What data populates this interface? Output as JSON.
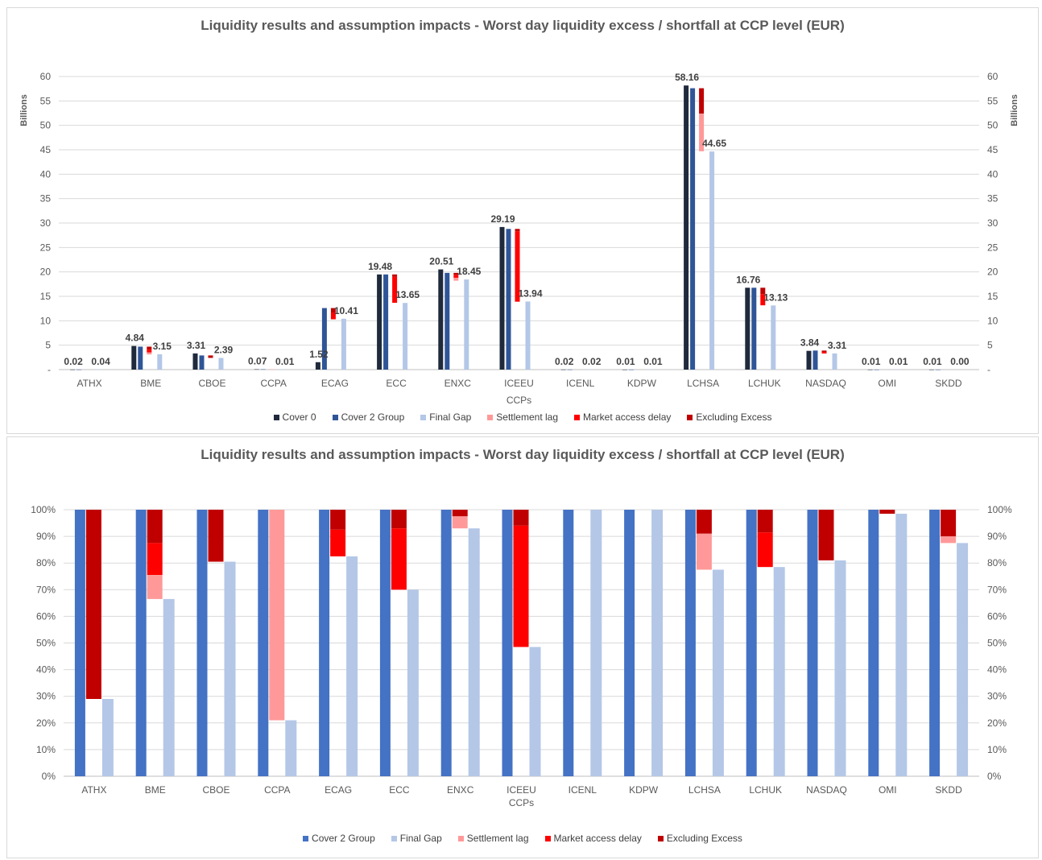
{
  "chart_data": [
    {
      "type": "bar",
      "title": "Liquidity results and assumption impacts - Worst day liquidity excess / shortfall at CCP level (EUR)",
      "xlabel": "CCPs",
      "ylabel": "Billions",
      "ylabel_right": "Billions",
      "ylim": [
        0,
        60
      ],
      "ytick_labels": [
        "-",
        "5",
        "10",
        "15",
        "20",
        "25",
        "30",
        "35",
        "40",
        "45",
        "50",
        "55",
        "60"
      ],
      "grid": true,
      "legend_position": "bottom",
      "categories": [
        "ATHX",
        "BME",
        "CBOE",
        "CCPA",
        "ECAG",
        "ECC",
        "ENXC",
        "ICEEU",
        "ICENL",
        "KDPW",
        "LCHSA",
        "LCHUK",
        "NASDAQ",
        "OMI",
        "SKDD"
      ],
      "series": [
        {
          "name": "Cover 0",
          "color": "#1f2a3c",
          "values": [
            0.02,
            4.84,
            3.31,
            0.07,
            1.52,
            19.48,
            20.51,
            29.19,
            0.02,
            0.01,
            58.16,
            16.76,
            3.84,
            0.01,
            0.01
          ]
        },
        {
          "name": "Cover 2 Group",
          "color": "#2f5597",
          "values": [
            0.02,
            4.7,
            2.9,
            0.07,
            12.6,
            19.48,
            19.8,
            28.8,
            0.02,
            0.01,
            57.6,
            16.76,
            3.9,
            0.01,
            0.01
          ]
        },
        {
          "name": "Final Gap",
          "color": "#b4c7e7",
          "values": [
            0.04,
            3.15,
            2.39,
            0.01,
            10.41,
            13.65,
            18.45,
            13.94,
            0.02,
            0.01,
            44.65,
            13.13,
            3.31,
            0.01,
            0.0
          ]
        },
        {
          "name": "Settlement lag",
          "color": "#ff9999",
          "values": [
            0,
            0.4,
            0,
            0.06,
            0,
            0,
            0.6,
            0,
            0,
            0,
            7.7,
            0,
            0,
            0,
            0
          ]
        },
        {
          "name": "Market access delay",
          "color": "#ff0000",
          "values": [
            0,
            0.6,
            0,
            0,
            1.4,
            5.3,
            0.6,
            14.4,
            0,
            0,
            0,
            2.3,
            0.3,
            0,
            0
          ]
        },
        {
          "name": "Excluding Excess",
          "color": "#c00000",
          "values": [
            0,
            0.6,
            0.5,
            0,
            0.9,
            0.5,
            0.4,
            0.5,
            0,
            0,
            5.2,
            1.3,
            0.3,
            0,
            0
          ]
        }
      ],
      "data_labels": {
        "Cover 0": [
          "0.02",
          "4.84",
          "3.31",
          "0.07",
          "1.52",
          "19.48",
          "20.51",
          "29.19",
          "0.02",
          "0.01",
          "58.16",
          "16.76",
          "3.84",
          "0.01",
          "0.01"
        ],
        "Final Gap": [
          "0.04",
          "3.15",
          "2.39",
          "0.01",
          "10.41",
          "13.65",
          "18.45",
          "13.94",
          "0.02",
          "0.01",
          "44.65",
          "13.13",
          "3.31",
          "0.01",
          "0.00"
        ]
      }
    },
    {
      "type": "bar",
      "title": "Liquidity results and assumption impacts - Worst day liquidity excess / shortfall at CCP level (EUR)",
      "xlabel": "CCPs",
      "ylabel": "",
      "ylim": [
        0,
        100
      ],
      "ytick_labels": [
        "0%",
        "10%",
        "20%",
        "30%",
        "40%",
        "50%",
        "60%",
        "70%",
        "80%",
        "90%",
        "100%"
      ],
      "grid": true,
      "legend_position": "bottom",
      "unit": "%",
      "categories": [
        "ATHX",
        "BME",
        "CBOE",
        "CCPA",
        "ECAG",
        "ECC",
        "ENXC",
        "ICEEU",
        "ICENL",
        "KDPW",
        "LCHSA",
        "LCHUK",
        "NASDAQ",
        "OMI",
        "SKDD"
      ],
      "series": [
        {
          "name": "Cover 2 Group",
          "color": "#4472c4",
          "values": [
            100,
            100,
            100,
            100,
            100,
            100,
            100,
            100,
            100,
            100,
            100,
            100,
            100,
            100,
            100
          ]
        },
        {
          "name": "Final Gap",
          "color": "#b4c7e7",
          "values": [
            29,
            66.5,
            80.5,
            21,
            82.5,
            70,
            93,
            48.5,
            100,
            100,
            77.5,
            78.5,
            81,
            98.5,
            87.5
          ]
        },
        {
          "name": "Settlement lag",
          "color": "#ff9999",
          "values": [
            0,
            9,
            0,
            79,
            0,
            0,
            4.5,
            0,
            0,
            0,
            13.5,
            0,
            0,
            0,
            2.5
          ]
        },
        {
          "name": "Market access delay",
          "color": "#ff0000",
          "values": [
            0,
            12,
            0,
            0,
            10,
            23,
            0,
            45.5,
            0,
            0,
            0,
            13,
            0,
            0,
            0
          ]
        },
        {
          "name": "Excluding Excess",
          "color": "#c00000",
          "values": [
            71,
            12.5,
            19.5,
            0,
            7.5,
            7,
            2.5,
            6,
            0,
            0,
            9,
            8.5,
            19,
            1.5,
            10
          ]
        }
      ]
    }
  ]
}
